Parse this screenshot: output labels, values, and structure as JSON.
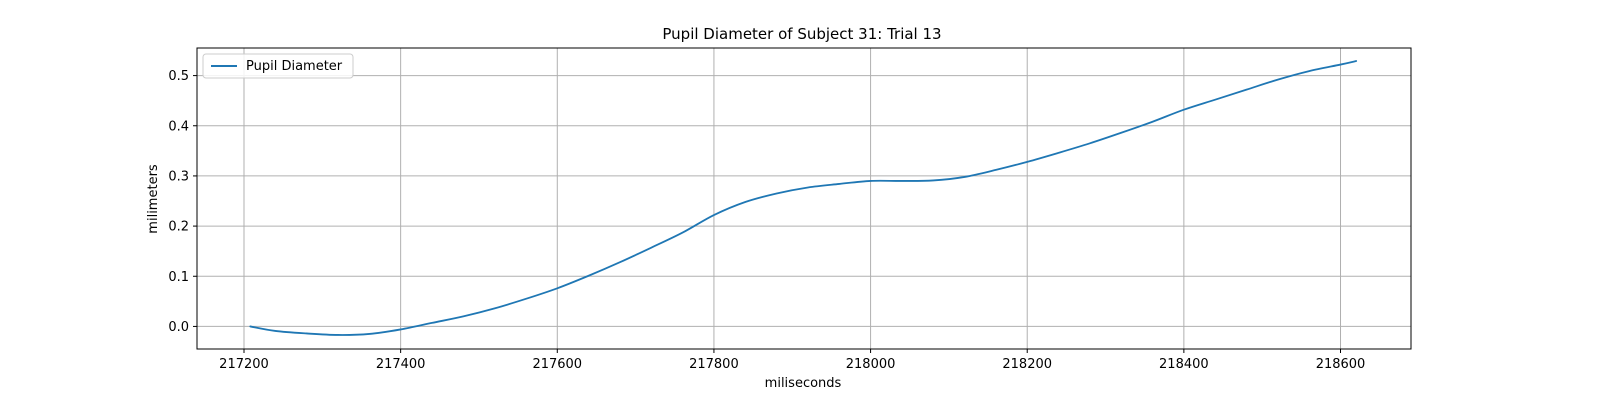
{
  "chart_data": {
    "type": "line",
    "title": "Pupil Diameter of Subject 31: Trial 13",
    "xlabel": "miliseconds",
    "ylabel": "milimeters",
    "xlim": [
      217140,
      218690
    ],
    "ylim": [
      -0.045,
      0.555
    ],
    "xticks": [
      217200,
      217400,
      217600,
      217800,
      218000,
      218200,
      218400,
      218600
    ],
    "yticks": [
      0.0,
      0.1,
      0.2,
      0.3,
      0.4,
      0.5
    ],
    "ytick_labels": [
      "0.0",
      "0.1",
      "0.2",
      "0.3",
      "0.4",
      "0.5"
    ],
    "grid": true,
    "legend_position": "upper-left",
    "series": [
      {
        "name": "Pupil Diameter",
        "color": "#1f77b4",
        "x": [
          217208,
          217240,
          217280,
          217320,
          217360,
          217400,
          217440,
          217480,
          217520,
          217560,
          217600,
          217640,
          217680,
          217720,
          217760,
          217800,
          217840,
          217880,
          217920,
          217960,
          218000,
          218040,
          218080,
          218120,
          218160,
          218200,
          218240,
          218280,
          218320,
          218360,
          218400,
          218440,
          218480,
          218520,
          218560,
          218600,
          218620
        ],
        "y": [
          0.0,
          -0.009,
          -0.014,
          -0.017,
          -0.015,
          -0.006,
          0.007,
          0.02,
          0.036,
          0.055,
          0.076,
          0.101,
          0.128,
          0.157,
          0.187,
          0.222,
          0.248,
          0.265,
          0.277,
          0.284,
          0.29,
          0.29,
          0.291,
          0.298,
          0.312,
          0.328,
          0.346,
          0.365,
          0.386,
          0.408,
          0.432,
          0.452,
          0.472,
          0.492,
          0.509,
          0.522,
          0.529
        ]
      }
    ]
  }
}
